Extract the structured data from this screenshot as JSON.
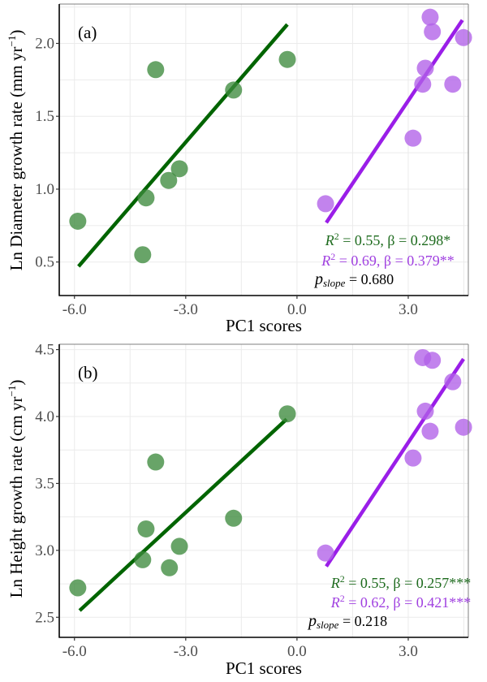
{
  "colors": {
    "green_point": "#3e8a3e",
    "green_line": "#006400",
    "green_text": "#1e6b1e",
    "purple_point": "#b160e8",
    "purple_line": "#9a1ee8",
    "purple_text": "#a040e0",
    "grid": "#ebebeb",
    "text": "#000000"
  },
  "chart_data": [
    {
      "type": "scatter",
      "panel_label": "(a)",
      "xlabel": "PC1 scores",
      "ylabel": "Ln Diameter growth rate (mm yr",
      "ylabel_sup": "−1",
      "ylabel_close": ")",
      "xlim": [
        -6.41,
        4.62
      ],
      "ylim": [
        0.27,
        2.27
      ],
      "x_ticks": [
        -6.0,
        -3.0,
        0.0,
        3.0
      ],
      "x_tick_labels": [
        "-6.0",
        "-3.0",
        "0.0",
        "3.0"
      ],
      "y_ticks": [
        0.5,
        1.0,
        1.5,
        2.0
      ],
      "y_tick_labels": [
        "0.5",
        "1.0",
        "1.5",
        "2.0"
      ],
      "grid": true,
      "series": [
        {
          "name": "green",
          "points": [
            {
              "x": -5.91,
              "y": 0.78
            },
            {
              "x": -4.16,
              "y": 0.55
            },
            {
              "x": -4.07,
              "y": 0.94
            },
            {
              "x": -3.46,
              "y": 1.06
            },
            {
              "x": -3.17,
              "y": 1.14
            },
            {
              "x": -3.81,
              "y": 1.82
            },
            {
              "x": -1.71,
              "y": 1.68
            },
            {
              "x": -0.26,
              "y": 1.89
            }
          ],
          "fit": {
            "x": [
              -5.89,
              -0.26
            ],
            "y": [
              0.47,
              2.13
            ]
          }
        },
        {
          "name": "purple",
          "points": [
            {
              "x": 0.77,
              "y": 0.9
            },
            {
              "x": 3.13,
              "y": 1.35
            },
            {
              "x": 3.39,
              "y": 1.72
            },
            {
              "x": 3.46,
              "y": 1.83
            },
            {
              "x": 4.2,
              "y": 1.72
            },
            {
              "x": 3.59,
              "y": 2.18
            },
            {
              "x": 3.65,
              "y": 2.08
            },
            {
              "x": 4.49,
              "y": 2.04
            }
          ],
          "fit": {
            "x": [
              0.79,
              4.46
            ],
            "y": [
              0.77,
              2.16
            ]
          }
        }
      ],
      "annotations": {
        "green": {
          "r_label": "R",
          "r_sup": "2",
          "text": " = 0.55, β = 0.298*"
        },
        "purple": {
          "r_label": "R",
          "r_sup": "2",
          "text": " = 0.69, β = 0.379**"
        },
        "pslope": {
          "p_label": "p",
          "p_sub": "slope",
          "text": " = 0.680"
        }
      }
    },
    {
      "type": "scatter",
      "panel_label": "(b)",
      "xlabel": "PC1 scores",
      "ylabel": "Ln Height growth rate (cm yr",
      "ylabel_sup": "−1",
      "ylabel_close": ")",
      "xlim": [
        -6.41,
        4.62
      ],
      "ylim": [
        2.35,
        4.54
      ],
      "x_ticks": [
        -6.0,
        -3.0,
        0.0,
        3.0
      ],
      "x_tick_labels": [
        "-6.0",
        "-3.0",
        "0.0",
        "3.0"
      ],
      "y_ticks": [
        2.5,
        3.0,
        3.5,
        4.0,
        4.5
      ],
      "y_tick_labels": [
        "2.5",
        "3.0",
        "3.5",
        "4.0",
        "4.5"
      ],
      "grid": true,
      "series": [
        {
          "name": "green",
          "points": [
            {
              "x": -5.91,
              "y": 2.72
            },
            {
              "x": -4.16,
              "y": 2.93
            },
            {
              "x": -4.07,
              "y": 3.16
            },
            {
              "x": -3.44,
              "y": 2.87
            },
            {
              "x": -3.17,
              "y": 3.03
            },
            {
              "x": -3.81,
              "y": 3.66
            },
            {
              "x": -1.71,
              "y": 3.24
            },
            {
              "x": -0.26,
              "y": 4.02
            }
          ],
          "fit": {
            "x": [
              -5.86,
              -0.28
            ],
            "y": [
              2.55,
              3.98
            ]
          }
        },
        {
          "name": "purple",
          "points": [
            {
              "x": 0.77,
              "y": 2.98
            },
            {
              "x": 3.13,
              "y": 3.69
            },
            {
              "x": 3.39,
              "y": 4.44
            },
            {
              "x": 3.65,
              "y": 4.42
            },
            {
              "x": 3.46,
              "y": 4.04
            },
            {
              "x": 3.59,
              "y": 3.89
            },
            {
              "x": 4.2,
              "y": 4.26
            },
            {
              "x": 4.49,
              "y": 3.92
            }
          ],
          "fit": {
            "x": [
              0.79,
              4.49
            ],
            "y": [
              2.88,
              4.43
            ]
          }
        }
      ],
      "annotations": {
        "green": {
          "r_label": "R",
          "r_sup": "2",
          "text": " = 0.55, β = 0.257***"
        },
        "purple": {
          "r_label": "R",
          "r_sup": "2",
          "text": " = 0.62, β = 0.421***"
        },
        "pslope": {
          "p_label": "p",
          "p_sub": "slope",
          "text": " = 0.218"
        }
      }
    }
  ]
}
